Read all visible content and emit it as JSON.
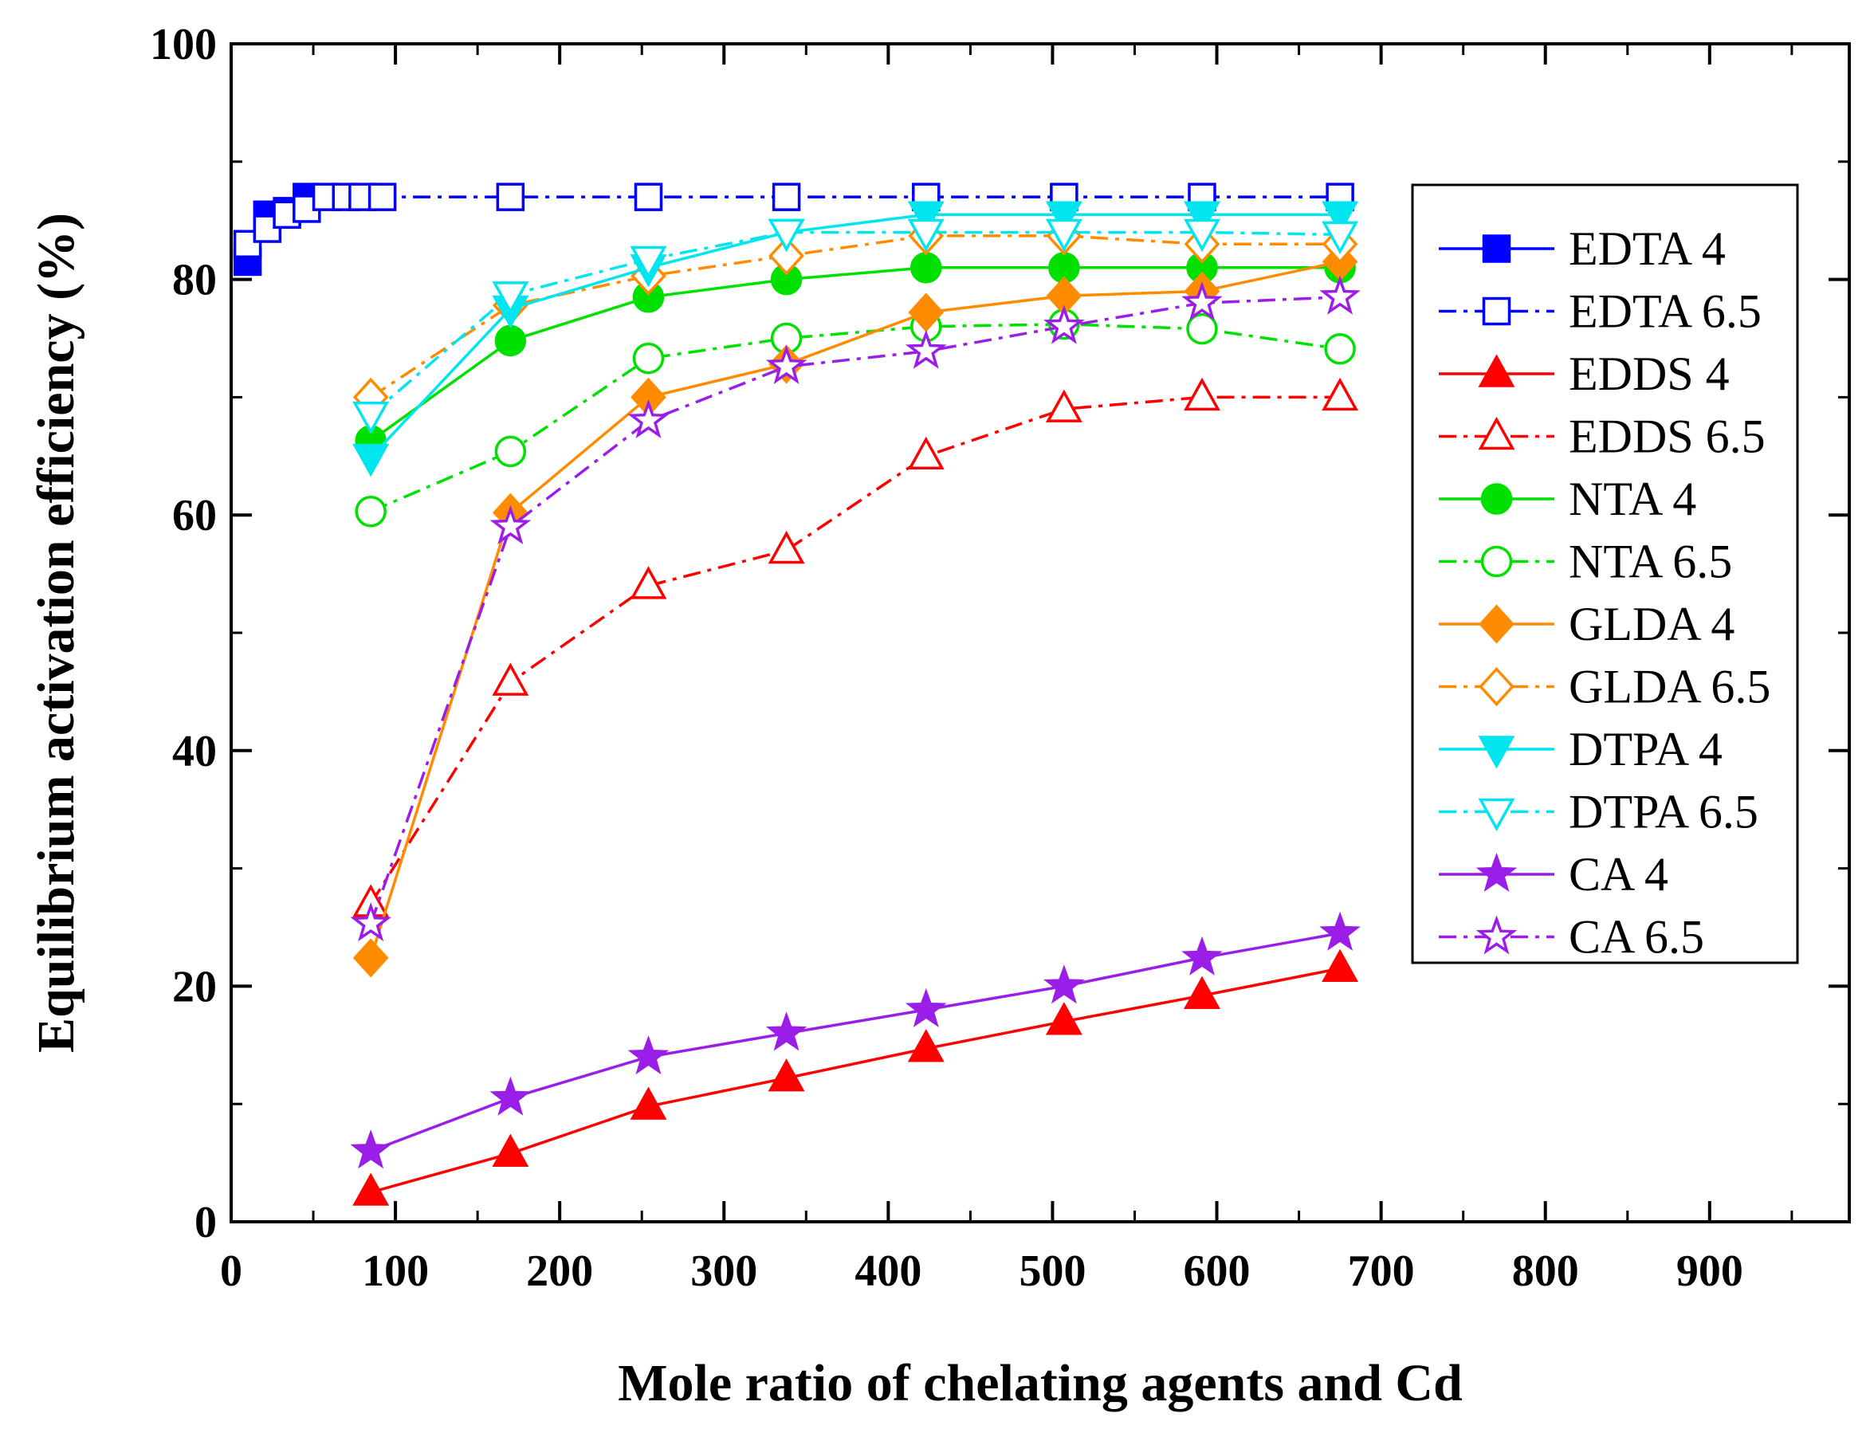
{
  "chart_data": {
    "type": "line",
    "title": "",
    "xlabel": "Mole ratio of chelating agents and Cd",
    "ylabel": "Equilibrium activation efficiency (%)",
    "xlim": [
      0,
      985
    ],
    "ylim": [
      0,
      100
    ],
    "x_ticks": [
      0,
      100,
      200,
      300,
      400,
      500,
      600,
      700,
      800,
      900
    ],
    "y_ticks": [
      0,
      20,
      40,
      60,
      80,
      100
    ],
    "x_tick_labels": [
      "0",
      "100",
      "200",
      "300",
      "400",
      "500",
      "600",
      "700",
      "800",
      "900"
    ],
    "y_tick_labels": [
      "0",
      "20",
      "40",
      "60",
      "80",
      "100"
    ],
    "grid": false,
    "legend_position": "right",
    "series": [
      {
        "name": "EDTA 4",
        "color": "#0000ff",
        "marker": "square",
        "filled": true,
        "dash": "solid",
        "x": [
          10,
          22,
          34,
          46
        ],
        "y": [
          81.5,
          85.5,
          85.8,
          87
        ]
      },
      {
        "name": "EDTA 6.5",
        "color": "#0000ff",
        "marker": "square",
        "filled": false,
        "dash": "dashdot",
        "x": [
          10,
          22,
          34,
          46,
          58,
          70,
          80,
          92,
          170,
          254,
          338,
          423,
          507,
          591,
          675
        ],
        "y": [
          83,
          84.3,
          85.5,
          86,
          87,
          87,
          87,
          87,
          87,
          87,
          87,
          87,
          87,
          87,
          87
        ]
      },
      {
        "name": "EDDS 4",
        "color": "#ff0000",
        "marker": "triangle-up",
        "filled": true,
        "dash": "solid",
        "x": [
          85,
          170,
          254,
          338,
          423,
          507,
          591,
          675
        ],
        "y": [
          2.5,
          5.8,
          9.8,
          12.2,
          14.7,
          17,
          19.2,
          21.5
        ]
      },
      {
        "name": "EDDS 6.5",
        "color": "#ff0000",
        "marker": "triangle-up",
        "filled": false,
        "dash": "dashdot",
        "x": [
          85,
          170,
          254,
          338,
          423,
          507,
          591,
          675
        ],
        "y": [
          27,
          45.8,
          54,
          57,
          65,
          69,
          70,
          70
        ]
      },
      {
        "name": "NTA 4",
        "color": "#00e000",
        "marker": "circle",
        "filled": true,
        "dash": "solid",
        "x": [
          85,
          170,
          254,
          338,
          423,
          507,
          591,
          675
        ],
        "y": [
          66.3,
          74.8,
          78.5,
          80,
          81,
          81,
          81,
          81
        ]
      },
      {
        "name": "NTA 6.5",
        "color": "#00e000",
        "marker": "circle",
        "filled": false,
        "dash": "dashdot",
        "x": [
          85,
          170,
          254,
          338,
          423,
          507,
          591,
          675
        ],
        "y": [
          60.3,
          65.4,
          73.3,
          75,
          76,
          76.2,
          75.8,
          74.1
        ]
      },
      {
        "name": "GLDA 4",
        "color": "#ff8c00",
        "marker": "diamond",
        "filled": true,
        "dash": "solid",
        "x": [
          85,
          170,
          254,
          338,
          423,
          507,
          591,
          675
        ],
        "y": [
          22.4,
          60.2,
          70,
          72.8,
          77.2,
          78.6,
          79,
          81.5
        ]
      },
      {
        "name": "GLDA 6.5",
        "color": "#ff8c00",
        "marker": "diamond",
        "filled": false,
        "dash": "dashdot",
        "x": [
          85,
          170,
          254,
          338,
          423,
          507,
          591,
          675
        ],
        "y": [
          70,
          77.8,
          80.3,
          82,
          83.7,
          83.7,
          83,
          83
        ]
      },
      {
        "name": "DTPA 4",
        "color": "#00e5ee",
        "marker": "triangle-down",
        "filled": true,
        "dash": "solid",
        "x": [
          85,
          170,
          254,
          338,
          423,
          507,
          591,
          675
        ],
        "y": [
          64.9,
          77.5,
          81,
          84,
          85.5,
          85.5,
          85.5,
          85.5
        ]
      },
      {
        "name": "DTPA 6.5",
        "color": "#00e5ee",
        "marker": "triangle-down",
        "filled": false,
        "dash": "dashdot",
        "x": [
          85,
          170,
          254,
          338,
          423,
          507,
          591,
          675
        ],
        "y": [
          68.5,
          78.7,
          81.7,
          84,
          84,
          84,
          84,
          83.8
        ]
      },
      {
        "name": "CA 4",
        "color": "#9a1ee8",
        "marker": "star",
        "filled": true,
        "dash": "solid",
        "x": [
          85,
          170,
          254,
          338,
          423,
          507,
          591,
          675
        ],
        "y": [
          6,
          10.5,
          14,
          16,
          18,
          20,
          22.4,
          24.5
        ]
      },
      {
        "name": "CA 6.5",
        "color": "#9a1ee8",
        "marker": "star",
        "filled": false,
        "dash": "dashdot",
        "x": [
          85,
          170,
          254,
          338,
          423,
          507,
          591,
          675
        ],
        "y": [
          25.3,
          59,
          68,
          72.6,
          73.9,
          76,
          78,
          78.5
        ]
      }
    ]
  }
}
